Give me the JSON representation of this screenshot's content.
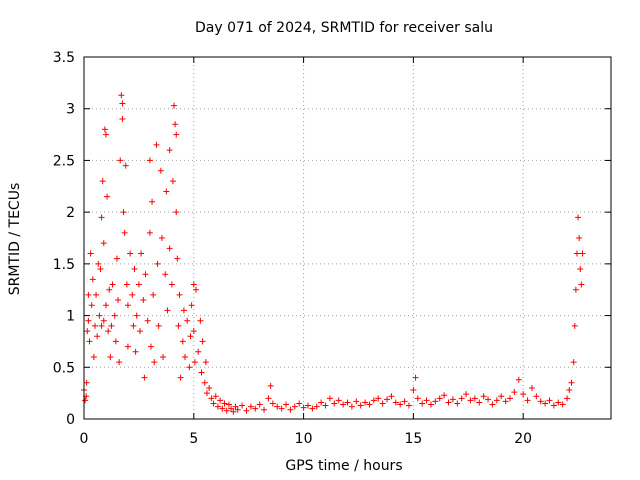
{
  "chart_data": {
    "type": "scatter",
    "title": "Day 071 of 2024, SRMTID for receiver salu",
    "xlabel": "GPS time / hours",
    "ylabel": "SRMTID / TECUs",
    "xlim": [
      0,
      24
    ],
    "ylim": [
      0,
      3.5
    ],
    "x_ticks": [
      0,
      5,
      10,
      15,
      20
    ],
    "x_tick_labels": [
      "0",
      "5",
      "10",
      "15",
      "20"
    ],
    "y_ticks": [
      0,
      0.5,
      1,
      1.5,
      2,
      2.5,
      3,
      3.5
    ],
    "y_tick_labels": [
      "0",
      "0.5",
      "1",
      "1.5",
      "2",
      "2.5",
      "3",
      "3.5"
    ],
    "grid": true,
    "marker": "+",
    "series": [
      {
        "name": "salu",
        "color": "#ff0000",
        "points": [
          [
            0.0,
            0.28
          ],
          [
            0.05,
            0.18
          ],
          [
            0.1,
            0.22
          ],
          [
            0.12,
            0.35
          ],
          [
            0.15,
            0.85
          ],
          [
            0.2,
            0.95
          ],
          [
            0.2,
            1.2
          ],
          [
            0.25,
            0.75
          ],
          [
            0.3,
            1.6
          ],
          [
            0.35,
            1.1
          ],
          [
            0.4,
            1.35
          ],
          [
            0.45,
            0.6
          ],
          [
            0.5,
            0.9
          ],
          [
            0.55,
            1.2
          ],
          [
            0.6,
            0.8
          ],
          [
            0.65,
            1.5
          ],
          [
            0.7,
            1.0
          ],
          [
            0.75,
            1.45
          ],
          [
            0.8,
            1.95
          ],
          [
            0.8,
            0.9
          ],
          [
            0.85,
            2.3
          ],
          [
            0.9,
            1.7
          ],
          [
            0.9,
            0.95
          ],
          [
            0.95,
            2.8
          ],
          [
            1.0,
            2.75
          ],
          [
            1.0,
            1.1
          ],
          [
            1.05,
            2.15
          ],
          [
            1.1,
            0.85
          ],
          [
            1.15,
            1.25
          ],
          [
            1.2,
            0.6
          ],
          [
            1.25,
            0.9
          ],
          [
            1.3,
            1.3
          ],
          [
            1.4,
            1.0
          ],
          [
            1.45,
            0.75
          ],
          [
            1.5,
            1.55
          ],
          [
            1.55,
            1.15
          ],
          [
            1.6,
            0.55
          ],
          [
            1.65,
            2.5
          ],
          [
            1.7,
            3.13
          ],
          [
            1.75,
            3.05
          ],
          [
            1.75,
            2.9
          ],
          [
            1.8,
            2.0
          ],
          [
            1.85,
            1.8
          ],
          [
            1.9,
            2.45
          ],
          [
            1.95,
            1.3
          ],
          [
            2.0,
            1.1
          ],
          [
            2.0,
            0.7
          ],
          [
            2.1,
            1.6
          ],
          [
            2.2,
            1.2
          ],
          [
            2.25,
            0.9
          ],
          [
            2.3,
            1.45
          ],
          [
            2.35,
            0.65
          ],
          [
            2.4,
            1.0
          ],
          [
            2.5,
            1.3
          ],
          [
            2.55,
            0.85
          ],
          [
            2.6,
            1.6
          ],
          [
            2.7,
            1.15
          ],
          [
            2.75,
            0.4
          ],
          [
            2.8,
            1.4
          ],
          [
            2.9,
            0.95
          ],
          [
            3.0,
            2.5
          ],
          [
            3.0,
            1.8
          ],
          [
            3.05,
            0.7
          ],
          [
            3.1,
            2.1
          ],
          [
            3.15,
            1.2
          ],
          [
            3.2,
            0.55
          ],
          [
            3.3,
            2.65
          ],
          [
            3.35,
            1.5
          ],
          [
            3.4,
            0.9
          ],
          [
            3.5,
            2.4
          ],
          [
            3.55,
            1.75
          ],
          [
            3.6,
            0.6
          ],
          [
            3.7,
            1.4
          ],
          [
            3.75,
            2.2
          ],
          [
            3.8,
            1.05
          ],
          [
            3.9,
            2.6
          ],
          [
            3.9,
            1.65
          ],
          [
            4.0,
            1.3
          ],
          [
            4.05,
            2.3
          ],
          [
            4.1,
            3.03
          ],
          [
            4.15,
            2.85
          ],
          [
            4.2,
            2.75
          ],
          [
            4.2,
            2.0
          ],
          [
            4.25,
            1.55
          ],
          [
            4.3,
            0.9
          ],
          [
            4.35,
            1.2
          ],
          [
            4.4,
            0.4
          ],
          [
            4.5,
            0.75
          ],
          [
            4.55,
            1.05
          ],
          [
            4.6,
            0.6
          ],
          [
            4.7,
            0.95
          ],
          [
            4.8,
            0.5
          ],
          [
            4.85,
            0.8
          ],
          [
            4.9,
            1.1
          ],
          [
            5.0,
            1.3
          ],
          [
            5.0,
            0.85
          ],
          [
            5.05,
            0.55
          ],
          [
            5.1,
            1.25
          ],
          [
            5.2,
            0.65
          ],
          [
            5.3,
            0.95
          ],
          [
            5.35,
            0.45
          ],
          [
            5.4,
            0.75
          ],
          [
            5.5,
            0.35
          ],
          [
            5.55,
            0.55
          ],
          [
            5.6,
            0.25
          ],
          [
            5.7,
            0.3
          ],
          [
            5.8,
            0.2
          ],
          [
            5.9,
            0.15
          ],
          [
            6.0,
            0.22
          ],
          [
            6.1,
            0.12
          ],
          [
            6.2,
            0.18
          ],
          [
            6.3,
            0.1
          ],
          [
            6.4,
            0.15
          ],
          [
            6.5,
            0.08
          ],
          [
            6.6,
            0.14
          ],
          [
            6.7,
            0.1
          ],
          [
            6.8,
            0.07
          ],
          [
            6.9,
            0.12
          ],
          [
            7.0,
            0.09
          ],
          [
            7.2,
            0.13
          ],
          [
            7.4,
            0.08
          ],
          [
            7.6,
            0.12
          ],
          [
            7.8,
            0.1
          ],
          [
            8.0,
            0.14
          ],
          [
            8.2,
            0.09
          ],
          [
            8.4,
            0.2
          ],
          [
            8.5,
            0.32
          ],
          [
            8.6,
            0.15
          ],
          [
            8.8,
            0.12
          ],
          [
            9.0,
            0.1
          ],
          [
            9.2,
            0.14
          ],
          [
            9.4,
            0.09
          ],
          [
            9.6,
            0.12
          ],
          [
            9.8,
            0.15
          ],
          [
            10.0,
            0.11
          ],
          [
            10.2,
            0.13
          ],
          [
            10.4,
            0.1
          ],
          [
            10.6,
            0.12
          ],
          [
            10.8,
            0.16
          ],
          [
            11.0,
            0.13
          ],
          [
            11.2,
            0.2
          ],
          [
            11.4,
            0.15
          ],
          [
            11.6,
            0.18
          ],
          [
            11.8,
            0.14
          ],
          [
            12.0,
            0.16
          ],
          [
            12.2,
            0.12
          ],
          [
            12.4,
            0.17
          ],
          [
            12.6,
            0.13
          ],
          [
            12.8,
            0.16
          ],
          [
            13.0,
            0.14
          ],
          [
            13.2,
            0.18
          ],
          [
            13.4,
            0.2
          ],
          [
            13.6,
            0.15
          ],
          [
            13.8,
            0.19
          ],
          [
            14.0,
            0.22
          ],
          [
            14.2,
            0.16
          ],
          [
            14.4,
            0.14
          ],
          [
            14.6,
            0.17
          ],
          [
            14.8,
            0.13
          ],
          [
            15.0,
            0.28
          ],
          [
            15.1,
            0.4
          ],
          [
            15.2,
            0.2
          ],
          [
            15.4,
            0.15
          ],
          [
            15.6,
            0.18
          ],
          [
            15.8,
            0.14
          ],
          [
            16.0,
            0.17
          ],
          [
            16.2,
            0.2
          ],
          [
            16.4,
            0.23
          ],
          [
            16.6,
            0.16
          ],
          [
            16.8,
            0.19
          ],
          [
            17.0,
            0.15
          ],
          [
            17.2,
            0.2
          ],
          [
            17.4,
            0.24
          ],
          [
            17.6,
            0.18
          ],
          [
            17.8,
            0.2
          ],
          [
            18.0,
            0.16
          ],
          [
            18.2,
            0.22
          ],
          [
            18.4,
            0.19
          ],
          [
            18.6,
            0.14
          ],
          [
            18.8,
            0.18
          ],
          [
            19.0,
            0.22
          ],
          [
            19.2,
            0.17
          ],
          [
            19.4,
            0.2
          ],
          [
            19.6,
            0.26
          ],
          [
            19.8,
            0.38
          ],
          [
            20.0,
            0.24
          ],
          [
            20.2,
            0.18
          ],
          [
            20.4,
            0.3
          ],
          [
            20.6,
            0.22
          ],
          [
            20.8,
            0.17
          ],
          [
            21.0,
            0.15
          ],
          [
            21.2,
            0.18
          ],
          [
            21.4,
            0.13
          ],
          [
            21.6,
            0.16
          ],
          [
            21.8,
            0.14
          ],
          [
            22.0,
            0.2
          ],
          [
            22.1,
            0.28
          ],
          [
            22.2,
            0.35
          ],
          [
            22.3,
            0.55
          ],
          [
            22.35,
            0.9
          ],
          [
            22.4,
            1.25
          ],
          [
            22.45,
            1.6
          ],
          [
            22.5,
            1.95
          ],
          [
            22.55,
            1.75
          ],
          [
            22.6,
            1.45
          ],
          [
            22.65,
            1.3
          ],
          [
            22.7,
            1.6
          ]
        ]
      }
    ]
  }
}
